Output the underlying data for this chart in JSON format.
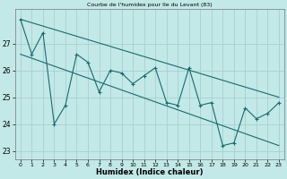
{
  "title": "Courbe de l'humidex pour Ile du Levant (83)",
  "xlabel": "Humidex (Indice chaleur)",
  "bg_color": "#c2e8e8",
  "grid_color": "#a8d0d0",
  "line_color": "#1a6b6b",
  "xlim": [
    -0.5,
    23.5
  ],
  "ylim": [
    22.7,
    28.3
  ],
  "yticks": [
    23,
    24,
    25,
    26,
    27
  ],
  "xticks": [
    0,
    1,
    2,
    3,
    4,
    5,
    6,
    7,
    8,
    9,
    10,
    11,
    12,
    13,
    14,
    15,
    16,
    17,
    18,
    19,
    20,
    21,
    22,
    23
  ],
  "main_x": [
    0,
    1,
    2,
    3,
    4,
    5,
    6,
    7,
    8,
    9,
    10,
    11,
    12,
    13,
    14,
    15,
    16,
    17,
    18,
    19,
    20,
    21,
    22,
    23
  ],
  "main_y": [
    27.9,
    26.6,
    27.4,
    24.0,
    24.7,
    26.6,
    26.3,
    25.2,
    26.0,
    25.9,
    25.5,
    25.8,
    26.1,
    24.8,
    24.7,
    26.1,
    24.7,
    24.8,
    23.2,
    23.3,
    24.6,
    24.2,
    24.4,
    24.8
  ],
  "upper_line": [
    [
      0,
      27.9
    ],
    [
      23,
      25.0
    ]
  ],
  "lower_line": [
    [
      0,
      26.6
    ],
    [
      23,
      23.2
    ]
  ]
}
